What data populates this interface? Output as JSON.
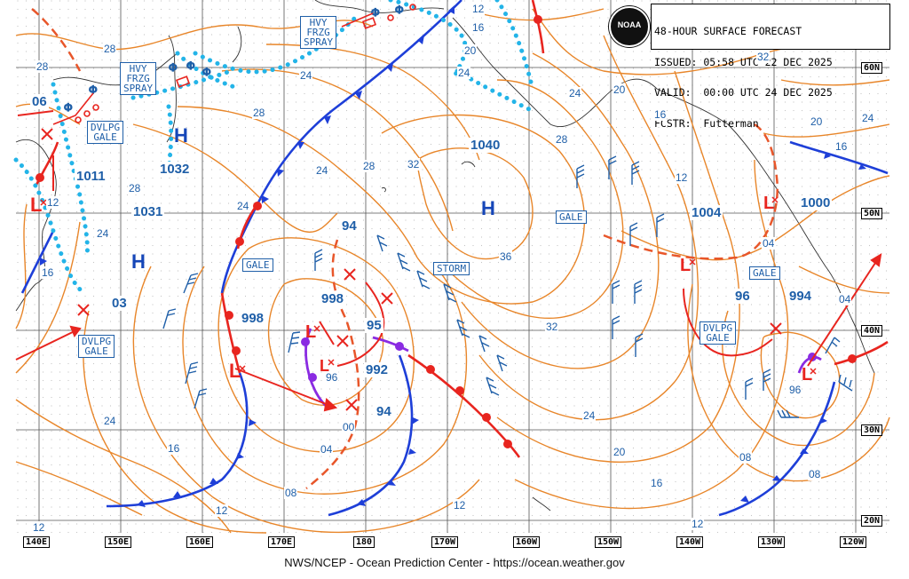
{
  "header": {
    "title": "48-HOUR SURFACE FORECAST",
    "issued": "ISSUED: 05:58 UTC 22 DEC 2025",
    "valid": "VALID:  00:00 UTC 24 DEC 2025",
    "forecaster": "FCSTR:  Futterman",
    "logo_text": "NOAA"
  },
  "footer": "NWS/NCEP - Ocean Prediction Center - https://ocean.weather.gov",
  "latitudes": [
    "60N",
    "50N",
    "40N",
    "30N",
    "20N"
  ],
  "longitudes": [
    "140E",
    "150E",
    "160E",
    "170E",
    "180",
    "170W",
    "160W",
    "150W",
    "140W",
    "130W",
    "120W"
  ],
  "warnings": {
    "hvy_frzg_spray_1": [
      "HVY",
      "FRZG",
      "SPRAY"
    ],
    "hvy_frzg_spray_2": [
      "HVY",
      "FRZG",
      "SPRAY"
    ],
    "dvlpg_gale_1": [
      "DVLPG",
      "GALE"
    ],
    "dvlpg_gale_2": [
      "DVLPG",
      "GALE"
    ],
    "dvlpg_gale_3": [
      "DVLPG",
      "GALE"
    ],
    "gale_1": "GALE",
    "gale_2": "GALE",
    "gale_3": "GALE",
    "storm": "STORM"
  },
  "pressure_centers": {
    "h1": "1032",
    "h2": "1031",
    "h3": "1040",
    "l1": "1011",
    "l2": "1004",
    "l3": "1000",
    "p998a": "998",
    "p998b": "998",
    "p992": "992",
    "p994": "994",
    "p95": "95",
    "p94a": "94",
    "p94b": "94",
    "p96": "96",
    "p03": "03",
    "p06": "06"
  },
  "isobar_labels": [
    "28",
    "28",
    "24",
    "28",
    "24",
    "24",
    "28",
    "32",
    "36",
    "24",
    "28",
    "24",
    "12",
    "16",
    "20",
    "24",
    "20",
    "16",
    "12",
    "32",
    "20",
    "24",
    "16",
    "04",
    "28",
    "32",
    "24",
    "16",
    "12",
    "20",
    "16",
    "04",
    "08",
    "00",
    "04",
    "08",
    "12",
    "12",
    "96",
    "08",
    "96",
    "12",
    "12",
    "16",
    "24"
  ],
  "symbols": {
    "high": "H",
    "low": "L"
  }
}
